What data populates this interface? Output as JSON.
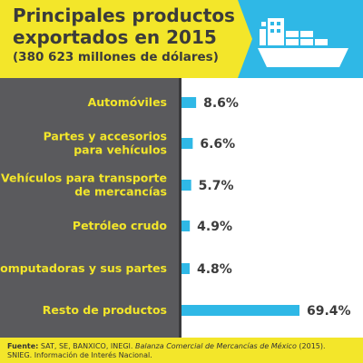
{
  "header": {
    "title_line1": "Principales productos",
    "title_line2": "exportados en 2015",
    "subtitle": "(380 623 millones de dólares)"
  },
  "colors": {
    "yellow": "#f3e62a",
    "blue": "#2fb8e6",
    "panel": "#5a5a5d",
    "text": "#3b3b3b"
  },
  "icons": {
    "header": "cargo-ship-icon"
  },
  "chart_data": {
    "type": "bar",
    "orientation": "horizontal",
    "categories": [
      [
        "Automóviles"
      ],
      [
        "Partes y accesorios",
        "para vehículos"
      ],
      [
        "Vehículos para transporte",
        "de mercancías"
      ],
      [
        "Petróleo crudo"
      ],
      [
        "Computadoras y sus partes"
      ],
      [
        "Resto de productos"
      ]
    ],
    "values": [
      8.6,
      6.6,
      5.7,
      4.9,
      4.8,
      69.4
    ],
    "value_labels": [
      "8.6%",
      "6.6%",
      "5.7%",
      "4.9%",
      "4.8%",
      "69.4%"
    ],
    "title": "Principales productos exportados en 2015",
    "xlim": [
      0,
      69.4
    ],
    "grid": false
  },
  "footer": {
    "source_label": "Fuente:",
    "source_text": "SAT, SE, BANXICO, INEGI.",
    "source_publication": "Balanza Comercial de Mercancías de México",
    "source_year": "(2015).",
    "source_line2": "SNIEG. Información de Interés Nacional."
  }
}
